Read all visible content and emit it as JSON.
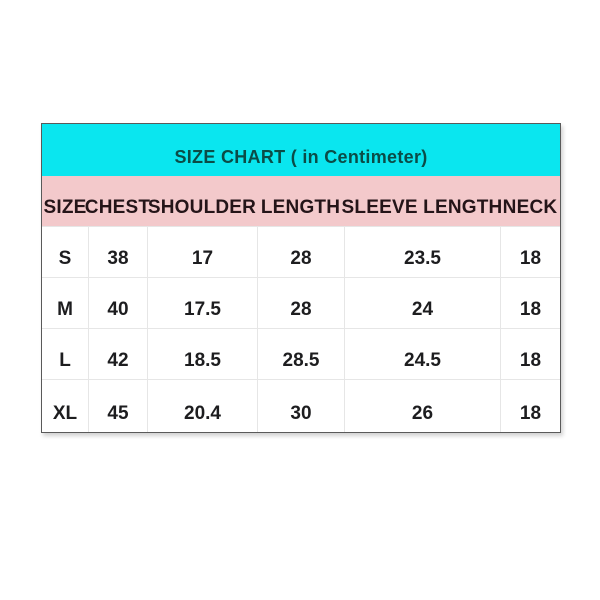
{
  "size_chart": {
    "title": "SIZE CHART ( in Centimeter)",
    "columns": [
      "SIZE",
      "CHEST",
      "SHOULDER",
      "LENGTH",
      "SLEEVE LENGTH",
      "NECK"
    ],
    "rows": [
      [
        "S",
        "38",
        "17",
        "28",
        "23.5",
        "18"
      ],
      [
        "M",
        "40",
        "17.5",
        "28",
        "24",
        "18"
      ],
      [
        "L",
        "42",
        "18.5",
        "28.5",
        "24.5",
        "18"
      ],
      [
        "XL",
        "45",
        "20.4",
        "30",
        "26",
        "18"
      ]
    ],
    "colors": {
      "title_band": "#0ae6ef",
      "title_text": "#0b4c47",
      "header_band": "#f3c9cb",
      "header_text": "#241418",
      "cell_text": "#1d1d1f",
      "gridline": "#e6e6e6",
      "outer_border": "#5a5a5a",
      "page_background": "#ffffff"
    }
  },
  "chart_data": {
    "type": "table",
    "title": "SIZE CHART ( in Centimeter)",
    "unit": "Centimeter",
    "columns": [
      "SIZE",
      "CHEST",
      "SHOULDER",
      "LENGTH",
      "SLEEVE LENGTH",
      "NECK"
    ],
    "rows": [
      {
        "size": "S",
        "chest": 38,
        "shoulder": 17,
        "length": 28,
        "sleeve_length": 23.5,
        "neck": 18
      },
      {
        "size": "M",
        "chest": 40,
        "shoulder": 17.5,
        "length": 28,
        "sleeve_length": 24,
        "neck": 18
      },
      {
        "size": "L",
        "chest": 42,
        "shoulder": 18.5,
        "length": 28.5,
        "sleeve_length": 24.5,
        "neck": 18
      },
      {
        "size": "XL",
        "chest": 45,
        "shoulder": 20.4,
        "length": 30,
        "sleeve_length": 26,
        "neck": 18
      }
    ],
    "layout_hints": {
      "title_band_color": "cyan",
      "header_band_color": "pink",
      "grid": "light-gray internal gridlines, dark thin outer border",
      "text_alignment": "center, bottom-aligned in cells"
    }
  }
}
